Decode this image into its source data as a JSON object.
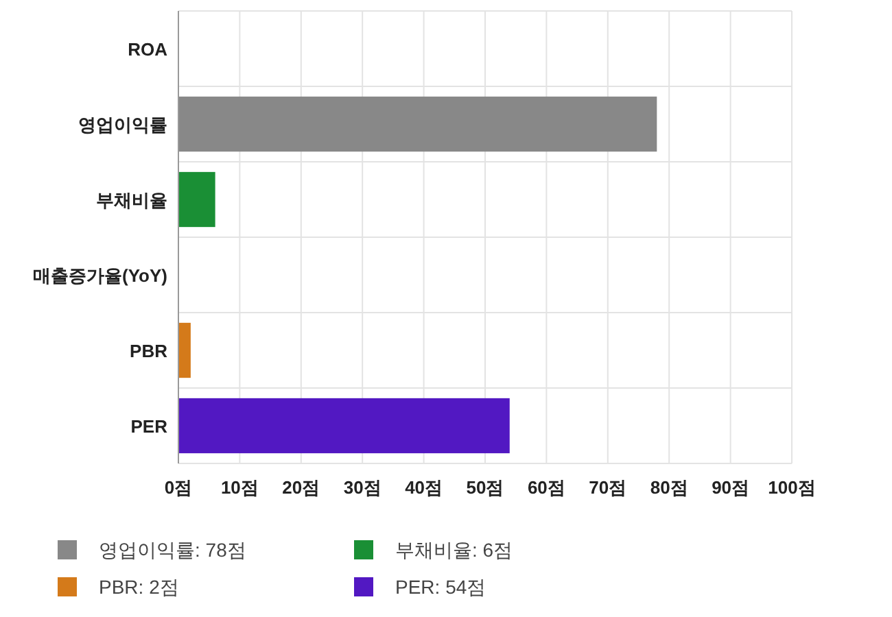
{
  "chart_data": {
    "type": "bar",
    "orientation": "horizontal",
    "stacked": true,
    "categories": [
      "ROA",
      "영업이익률",
      "부채비율",
      "매출증가율(YoY)",
      "PBR",
      "PER"
    ],
    "series": [
      {
        "name": "영업이익률: 78점",
        "color": "#888888",
        "values": [
          null,
          78,
          null,
          null,
          null,
          null
        ]
      },
      {
        "name": "부채비율: 6점",
        "color": "#1a8f35",
        "values": [
          null,
          null,
          6,
          null,
          null,
          null
        ]
      },
      {
        "name": "PBR: 2점",
        "color": "#d47a1a",
        "values": [
          null,
          null,
          null,
          null,
          2,
          null
        ]
      },
      {
        "name": "PER: 54점",
        "color": "#5218c2",
        "values": [
          null,
          null,
          null,
          null,
          null,
          54
        ]
      }
    ],
    "xlim": [
      0,
      100
    ],
    "xticks": [
      {
        "value": 0,
        "label": "0점"
      },
      {
        "value": 10,
        "label": "10점"
      },
      {
        "value": 20,
        "label": "20점"
      },
      {
        "value": 30,
        "label": "30점"
      },
      {
        "value": 40,
        "label": "40점"
      },
      {
        "value": 50,
        "label": "50점"
      },
      {
        "value": 60,
        "label": "60점"
      },
      {
        "value": 70,
        "label": "70점"
      },
      {
        "value": 80,
        "label": "80점"
      },
      {
        "value": 90,
        "label": "90점"
      },
      {
        "value": 100,
        "label": "100점"
      }
    ],
    "grid": true,
    "legend": "bottom"
  }
}
